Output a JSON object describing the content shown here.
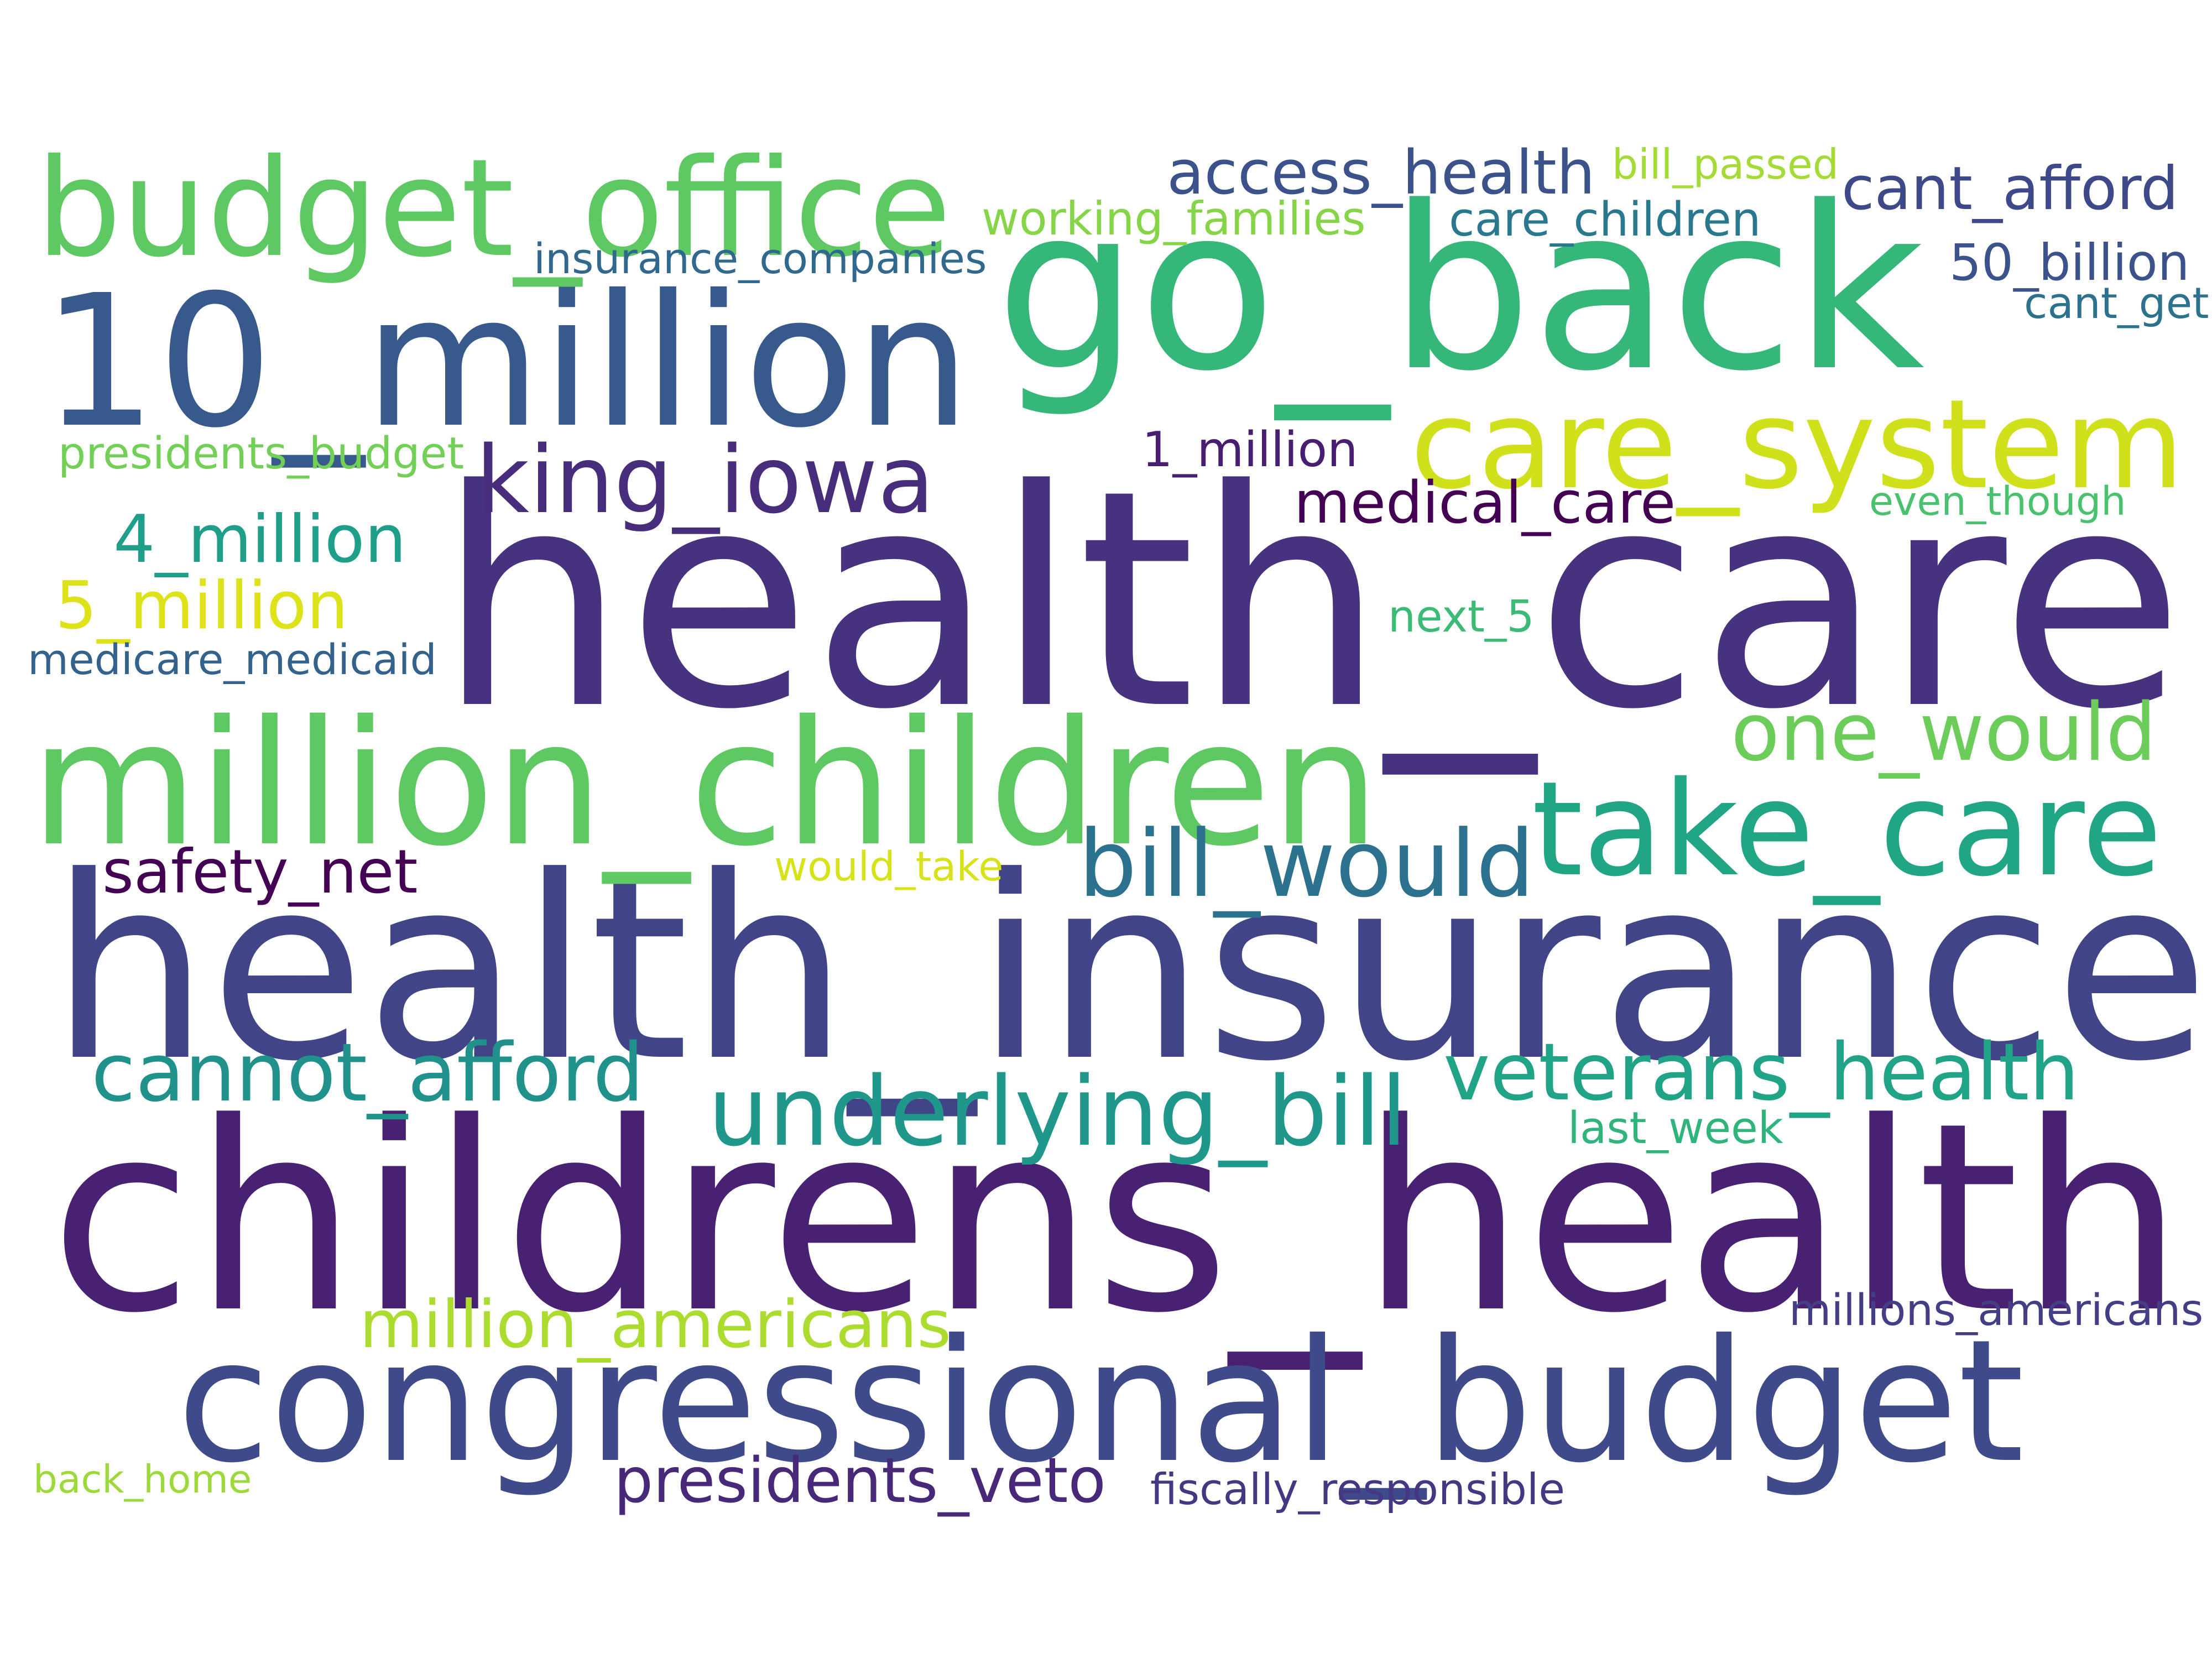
{
  "words": [
    {
      "text": "health_care",
      "color": "#46327e"
    },
    {
      "text": "health_insurance",
      "color": "#414487"
    },
    {
      "text": "childrens_health",
      "color": "#482173"
    },
    {
      "text": "go_back",
      "color": "#35b779"
    },
    {
      "text": "10_million",
      "color": "#38598c"
    },
    {
      "text": "budget_office",
      "color": "#5ec962"
    },
    {
      "text": "million_children",
      "color": "#5ec962"
    },
    {
      "text": "congressional_budget",
      "color": "#3e4a89"
    },
    {
      "text": "care_system",
      "color": "#d0e11c"
    },
    {
      "text": "take_care",
      "color": "#21a685"
    },
    {
      "text": "king_iowa",
      "color": "#472d7b"
    },
    {
      "text": "one_would",
      "color": "#6ccd5a"
    },
    {
      "text": "bill_would",
      "color": "#2c728e"
    },
    {
      "text": "underlying_bill",
      "color": "#1f988b"
    },
    {
      "text": "veterans_health",
      "color": "#20a386"
    },
    {
      "text": "cannot_afford",
      "color": "#21918c"
    },
    {
      "text": "access_health",
      "color": "#3b528b"
    },
    {
      "text": "cant_afford",
      "color": "#3e4989"
    },
    {
      "text": "million_americans",
      "color": "#addc30"
    },
    {
      "text": "presidents_veto",
      "color": "#482878"
    },
    {
      "text": "4_million",
      "color": "#1f9e89"
    },
    {
      "text": "5_million",
      "color": "#dde318"
    },
    {
      "text": "safety_net",
      "color": "#440154"
    },
    {
      "text": "medical_care",
      "color": "#440154"
    },
    {
      "text": "working_families",
      "color": "#86d549"
    },
    {
      "text": "insurance_companies",
      "color": "#31688e"
    },
    {
      "text": "care_children",
      "color": "#2a788e"
    },
    {
      "text": "bill_passed",
      "color": "#a5db36"
    },
    {
      "text": "50_billion",
      "color": "#3b528b"
    },
    {
      "text": "cant_get",
      "color": "#2c728e"
    },
    {
      "text": "presidents_budget",
      "color": "#73d056"
    },
    {
      "text": "1_million",
      "color": "#481f70"
    },
    {
      "text": "even_though",
      "color": "#4ac16d"
    },
    {
      "text": "medicare_medicaid",
      "color": "#33638d"
    },
    {
      "text": "next_5",
      "color": "#3bbb75"
    },
    {
      "text": "would_take",
      "color": "#d8e219"
    },
    {
      "text": "last_week",
      "color": "#2fb47c"
    },
    {
      "text": "millions_americans",
      "color": "#433e85"
    },
    {
      "text": "back_home",
      "color": "#9dd93b"
    },
    {
      "text": "fiscally_responsible",
      "color": "#453781"
    }
  ]
}
